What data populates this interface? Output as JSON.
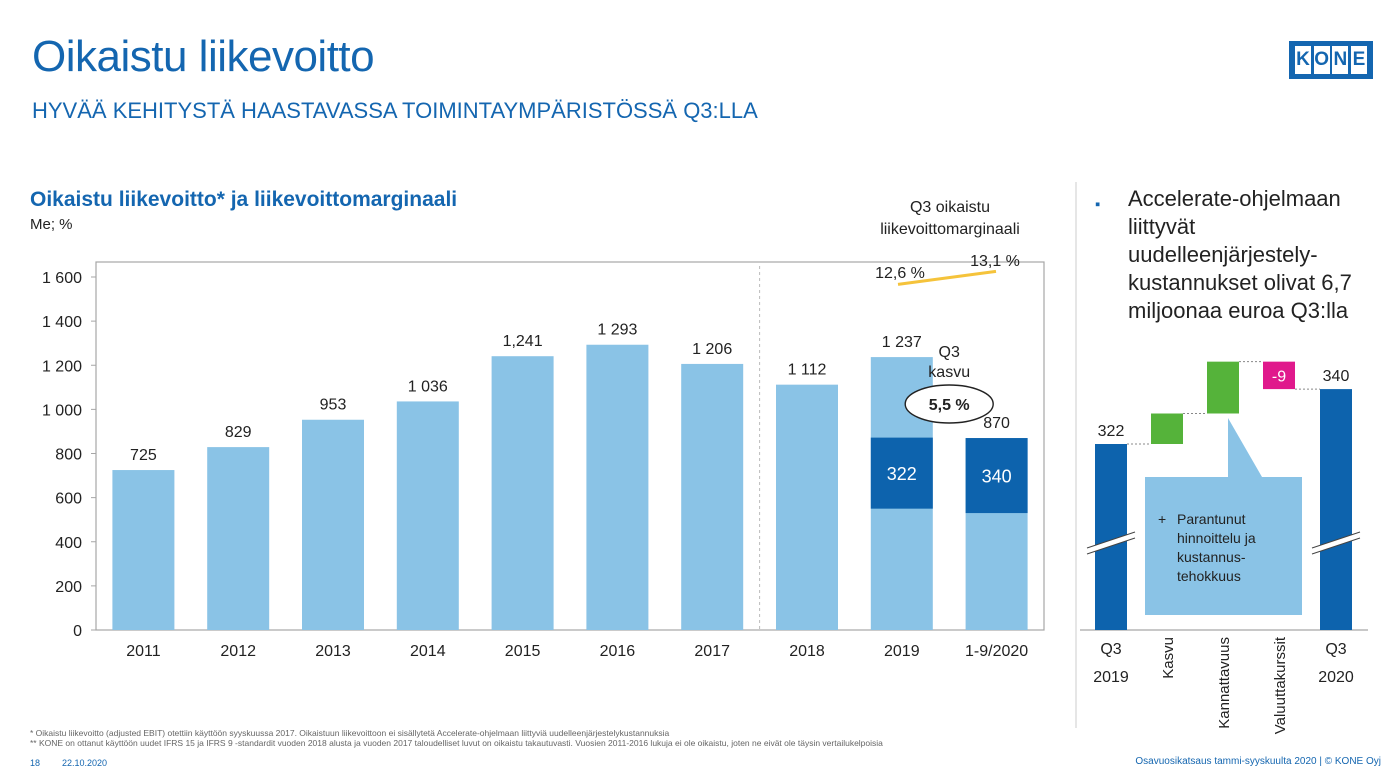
{
  "header": {
    "title": "Oikaistu liikevoitto",
    "subtitle": "HYVÄÄ KEHITYSTÄ HAASTAVASSA TOIMINTAYMPÄRISTÖSSÄ Q3:LLA",
    "logo_letters": [
      "K",
      "O",
      "N",
      "E"
    ]
  },
  "colors": {
    "brand": "#1466b0",
    "bar_light": "#8ac3e6",
    "bar_dark": "#0d63ad",
    "green": "#55b33a",
    "magenta": "#e0198c",
    "margin_line": "#f5c33b",
    "callout": "#8ac3e6"
  },
  "chart_data": [
    {
      "type": "bar",
      "title": "Oikaistu liikevoitto* ja liikevoittomarginaali",
      "unit_label": "Me; %",
      "categories": [
        "2011",
        "2012",
        "2013",
        "2014",
        "2015",
        "2016",
        "2017",
        "2018",
        "2019",
        "1-9/2020"
      ],
      "values": [
        725,
        829,
        953,
        1036,
        1241,
        1293,
        1206,
        1112,
        1237,
        870
      ],
      "value_labels": [
        "725",
        "829",
        "953",
        "1 036",
        "1,241",
        "1 293",
        "1 206",
        "1 112",
        "1 237",
        "870"
      ],
      "y_ticks": [
        0,
        200,
        400,
        600,
        800,
        1000,
        1200,
        1400,
        1600
      ],
      "y_tick_labels": [
        "0",
        "200",
        "400",
        "600",
        "800",
        "1 000",
        "1 200",
        "1 400",
        "1 600"
      ],
      "ylim": [
        0,
        1600
      ],
      "q3_highlight": [
        {
          "category": "2019",
          "bottom": 550,
          "top": 872,
          "value": 322,
          "label": "322"
        },
        {
          "category": "1-9/2020",
          "bottom": 530,
          "top": 870,
          "value": 340,
          "label": "340"
        }
      ],
      "q3_growth_label_line1": "Q3",
      "q3_growth_label_line2": "kasvu",
      "q3_growth_value": "5,5 %",
      "margin": {
        "title_line1": "Q3 oikaistu",
        "title_line2": "liikevoittomarginaali",
        "values": [
          12.6,
          13.1
        ],
        "labels": [
          "12,6 %",
          "13,1 %"
        ]
      }
    },
    {
      "type": "waterfall",
      "categories_top": [
        "Q3",
        "",
        "",
        "",
        "Q3"
      ],
      "categories_bottom": [
        "2019",
        "",
        "",
        "",
        "2020"
      ],
      "rotated_labels": [
        "Kasvu",
        "Kannattavuus",
        "Valuuttakurssit"
      ],
      "start": {
        "value": 322,
        "label": "322"
      },
      "end": {
        "value": 340,
        "label": "340"
      },
      "steps": [
        {
          "name": "Kasvu",
          "delta": 10
        },
        {
          "name": "Kannattavuus",
          "delta": 17
        },
        {
          "name": "Valuuttakurssit",
          "delta": -9,
          "label": "-9"
        }
      ],
      "callout": [
        "+",
        "Parantunut",
        "hinnoittelu ja",
        "kustannus-",
        "tehokkuus"
      ]
    }
  ],
  "bullet": {
    "marker": "▪",
    "text": "Accelerate-ohjelmaan liittyvät uudelleenjärjestely-kustannukset olivat 6,7 miljoonaa euroa Q3:lla"
  },
  "footer": {
    "footnote1": "* Oikaistu liikevoitto (adjusted EBIT) otettiin käyttöön syyskuussa 2017. Oikaistuun liikevoittoon ei sisällytetä Accelerate-ohjelmaan liittyviä uudelleenjärjestelykustannuksia",
    "footnote2": "** KONE on ottanut käyttöön uudet IFRS 15 ja IFRS 9 -standardit vuoden 2018 alusta ja vuoden 2017 taloudelliset luvut on oikaistu takautuvasti. Vuosien 2011-2016 lukuja ei ole oikaistu, joten ne eivät ole täysin vertailukelpoisia",
    "page": "18",
    "date": "22.10.2020",
    "right": "Osavuosikatsaus tammi-syyskuulta 2020 | © KONE Oyj"
  }
}
